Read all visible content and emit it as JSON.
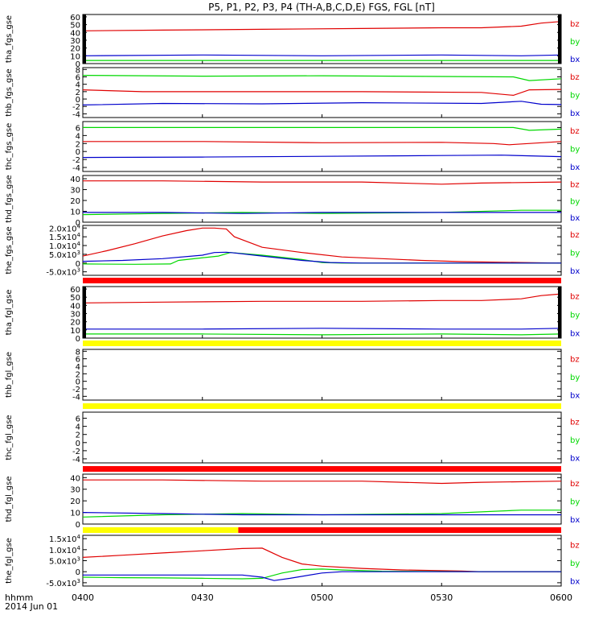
{
  "title": "P5, P1, P2, P3, P4 (TH-A,B,C,D,E) FGS, FGL [nT]",
  "footer": {
    "time_format_label": "hhmm",
    "date_label": "2014 Jun 01"
  },
  "colors": {
    "bz": "#e00000",
    "by": "#00d800",
    "bx": "#0000cc",
    "red_bar": "#ff0000",
    "yellow_bar": "#ffff00",
    "axis": "#000000"
  },
  "chart_data": {
    "type": "line",
    "x_ticks": [
      "0400",
      "0430",
      "0500",
      "0530",
      "0600"
    ],
    "x_range": [
      "04:00",
      "06:00"
    ],
    "panels": [
      {
        "ylabel": "tha_fgs_gse",
        "yticks": [
          "0",
          "10",
          "20",
          "30",
          "40",
          "50",
          "60"
        ],
        "ylim": [
          0,
          63
        ],
        "series": [
          {
            "name": "bz",
            "x": [
              0,
              20,
              45,
              70,
              90,
              100,
              110,
              115,
              120
            ],
            "y": [
              42,
              43,
              44,
              45,
              46,
              46,
              48,
              52,
              54
            ]
          },
          {
            "name": "by",
            "x": [
              0,
              30,
              60,
              90,
              110,
              120
            ],
            "y": [
              4,
              4,
              4,
              4,
              4,
              4
            ]
          },
          {
            "name": "bx",
            "x": [
              0,
              30,
              60,
              90,
              110,
              120
            ],
            "y": [
              10,
              11,
              10,
              11,
              10,
              11
            ]
          }
        ]
      },
      {
        "ylabel": "thb_fgs_gse",
        "yticks": [
          "-4",
          "-2",
          "0",
          "2",
          "4",
          "6",
          "8"
        ],
        "ylim": [
          -5,
          8.5
        ],
        "series": [
          {
            "name": "by",
            "x": [
              0,
              30,
              60,
              90,
              108,
              112,
              120
            ],
            "y": [
              6.4,
              6.2,
              6.3,
              6.1,
              6.0,
              5.0,
              5.5
            ]
          },
          {
            "name": "bz",
            "x": [
              0,
              15,
              40,
              70,
              100,
              108,
              112,
              120
            ],
            "y": [
              2.5,
              2.0,
              2.0,
              2.0,
              1.8,
              1.0,
              2.5,
              2.6
            ]
          },
          {
            "name": "bx",
            "x": [
              0,
              20,
              45,
              70,
              100,
              110,
              115,
              120
            ],
            "y": [
              -1.6,
              -1.2,
              -1.3,
              -1.0,
              -1.2,
              -0.6,
              -1.4,
              -1.5
            ]
          }
        ]
      },
      {
        "ylabel": "thc_fgs_gse",
        "yticks": [
          "-4",
          "-2",
          "0",
          "2",
          "4",
          "6"
        ],
        "ylim": [
          -5,
          7.5
        ],
        "series": [
          {
            "name": "by",
            "x": [
              0,
              30,
              60,
              90,
              108,
              112,
              120
            ],
            "y": [
              6.0,
              6.0,
              6.0,
              6.0,
              6.0,
              5.3,
              5.6
            ]
          },
          {
            "name": "bz",
            "x": [
              0,
              30,
              60,
              90,
              103,
              107,
              120
            ],
            "y": [
              2.5,
              2.5,
              2.2,
              2.3,
              2.0,
              1.7,
              2.5
            ]
          },
          {
            "name": "bx",
            "x": [
              0,
              30,
              60,
              90,
              105,
              120
            ],
            "y": [
              -1.5,
              -1.4,
              -1.2,
              -1.0,
              -0.9,
              -1.3
            ]
          }
        ]
      },
      {
        "ylabel": "thd_fgs_gse",
        "yticks": [
          "0",
          "10",
          "20",
          "30",
          "40"
        ],
        "ylim": [
          0,
          43
        ],
        "series": [
          {
            "name": "bz",
            "x": [
              0,
              20,
              45,
              70,
              90,
              100,
              120
            ],
            "y": [
              38,
              38,
              37,
              37,
              35,
              36,
              37
            ]
          },
          {
            "name": "by",
            "x": [
              0,
              20,
              40,
              60,
              90,
              110,
              120
            ],
            "y": [
              7,
              8,
              9,
              8,
              9,
              11,
              11
            ]
          },
          {
            "name": "bx",
            "x": [
              0,
              20,
              40,
              60,
              90,
              110,
              120
            ],
            "y": [
              9,
              9,
              8,
              9,
              9,
              9,
              9
            ]
          }
        ]
      },
      {
        "ylabel": "the_fgs_gse",
        "yticks": [
          "-5.0x10^3",
          "0",
          "5.0x10^3",
          "1.0x10^4",
          "1.5x10^4",
          "2.0x10^4"
        ],
        "ytick_values": [
          -5000,
          0,
          5000,
          10000,
          15000,
          20000
        ],
        "ylim": [
          -7000,
          21500
        ],
        "series": [
          {
            "name": "bz",
            "x": [
              0,
              6,
              13,
              20,
              26,
              30,
              33,
              36,
              38,
              45,
              55,
              65,
              75,
              85,
              95,
              110,
              120
            ],
            "y": [
              4000,
              7000,
              11000,
              15500,
              18500,
              20000,
              20000,
              19500,
              15000,
              9000,
              6000,
              3500,
              2500,
              1500,
              800,
              300,
              0
            ]
          },
          {
            "name": "by",
            "x": [
              0,
              13,
              22,
              24,
              34,
              37,
              45,
              55,
              60,
              65,
              70,
              90,
              120
            ],
            "y": [
              -500,
              -700,
              -500,
              1500,
              4000,
              6000,
              4500,
              2000,
              300,
              0,
              0,
              0,
              0
            ]
          },
          {
            "name": "bx",
            "x": [
              0,
              10,
              20,
              30,
              33,
              36,
              38,
              45,
              55,
              62,
              70,
              90,
              120
            ],
            "y": [
              1000,
              1500,
              2500,
              4500,
              6000,
              6200,
              5800,
              4000,
              1500,
              300,
              0,
              0,
              0
            ]
          }
        ]
      },
      {
        "ylabel": "tha_fgl_gse",
        "yticks": [
          "0",
          "10",
          "20",
          "30",
          "40",
          "50",
          "60"
        ],
        "ylim": [
          0,
          63
        ],
        "series": [
          {
            "name": "bz",
            "x": [
              0,
              20,
              45,
              70,
              90,
              100,
              110,
              115,
              120
            ],
            "y": [
              43,
              44,
              45,
              45,
              46,
              46,
              48,
              52,
              54
            ]
          },
          {
            "name": "by",
            "x": [
              0,
              30,
              60,
              90,
              110,
              120
            ],
            "y": [
              5,
              5,
              4,
              5,
              4,
              5
            ]
          },
          {
            "name": "bx",
            "x": [
              0,
              30,
              60,
              90,
              110,
              120
            ],
            "y": [
              11,
              11,
              12,
              11,
              11,
              12
            ]
          }
        ]
      },
      {
        "ylabel": "thb_fgl_gse",
        "yticks": [
          "-4",
          "-2",
          "0",
          "2",
          "4",
          "6",
          "8"
        ],
        "ylim": [
          -5,
          8.5
        ],
        "series": []
      },
      {
        "ylabel": "thc_fgl_gse",
        "yticks": [
          "-4",
          "-2",
          "0",
          "2",
          "4",
          "6"
        ],
        "ylim": [
          -5,
          7.5
        ],
        "series": []
      },
      {
        "ylabel": "thd_fgl_gse",
        "yticks": [
          "0",
          "10",
          "20",
          "30",
          "40"
        ],
        "ylim": [
          0,
          43
        ],
        "series": [
          {
            "name": "bz",
            "x": [
              0,
              20,
              45,
              70,
              90,
              100,
              120
            ],
            "y": [
              38,
              38,
              37,
              37,
              35,
              36,
              37
            ]
          },
          {
            "name": "by",
            "x": [
              0,
              20,
              40,
              60,
              90,
              110,
              120
            ],
            "y": [
              6,
              8,
              9,
              8,
              9,
              12,
              12
            ]
          },
          {
            "name": "bx",
            "x": [
              0,
              20,
              40,
              60,
              90,
              110,
              120
            ],
            "y": [
              10,
              9,
              8,
              8,
              8,
              8,
              8
            ]
          }
        ]
      },
      {
        "ylabel": "the_fgl_gse",
        "yticks": [
          "-5.0x10^3",
          "0",
          "5.0x10^3",
          "1.0x10^4",
          "1.5x10^4"
        ],
        "ytick_values": [
          -5000,
          0,
          5000,
          10000,
          15000
        ],
        "ylim": [
          -6500,
          16500
        ],
        "series": [
          {
            "name": "bz",
            "x": [
              0,
              10,
              20,
              30,
              40,
              45,
              50,
              55,
              60,
              70,
              80,
              95,
              100,
              120
            ],
            "y": [
              6500,
              7500,
              8500,
              9500,
              10500,
              10700,
              6500,
              3500,
              2500,
              1500,
              800,
              300,
              0,
              0
            ]
          },
          {
            "name": "by",
            "x": [
              0,
              10,
              20,
              30,
              40,
              45,
              50,
              55,
              60,
              65,
              75,
              100,
              120
            ],
            "y": [
              -2500,
              -2700,
              -2800,
              -3000,
              -3200,
              -3000,
              -600,
              1000,
              1200,
              800,
              200,
              0,
              0
            ]
          },
          {
            "name": "bx",
            "x": [
              0,
              20,
              40,
              45,
              48,
              52,
              60,
              65,
              75,
              100,
              120
            ],
            "y": [
              -1500,
              -1500,
              -1500,
              -2500,
              -4000,
              -3000,
              -600,
              0,
              0,
              0,
              0
            ]
          }
        ]
      }
    ]
  }
}
